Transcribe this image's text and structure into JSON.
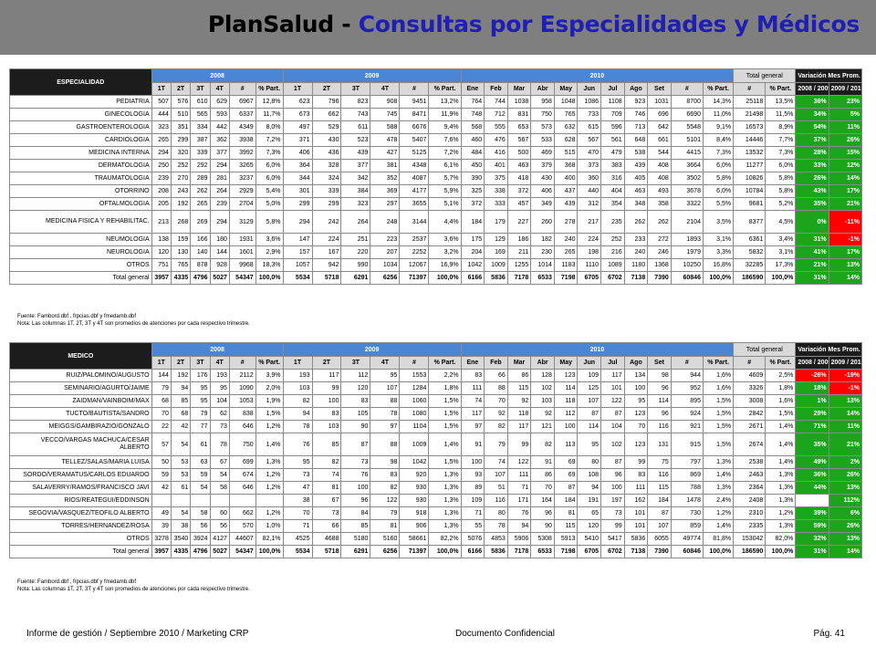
{
  "title": {
    "part1": "PlanSalud - ",
    "part2": "Consultas por Especialidades y Médicos"
  },
  "colors": {
    "header_bar": "#7f7f7f",
    "year_header": "#4a86d4",
    "positive": "#1aa51a",
    "negative": "#ff0000",
    "title_accent": "#1f1fb4"
  },
  "years": [
    "2008",
    "2009",
    "2010"
  ],
  "quarters": [
    "1T",
    "2T",
    "3T",
    "4T"
  ],
  "hash": "#",
  "pct_part": "% Part.",
  "months": [
    "Ene",
    "Feb",
    "Mar",
    "Abr",
    "May",
    "Jun",
    "Jul",
    "Ago",
    "Set"
  ],
  "total_general": "Total general",
  "variacion": "Variación Mes Prom.",
  "var_cols": [
    "2008 / 2009",
    "2009 / 2010"
  ],
  "note1": "Fuente: Fambord.dbf , frpcias.dbf y fmedamb.dbf",
  "note2": "Nota: Las columnas 1T, 2T, 3T y 4T son promedios de atenciones por cada respectivo trimestre.",
  "table1": {
    "label": "ESPECIALIDAD",
    "rows": [
      {
        "name": "PEDIATRIA",
        "v": [
          "507",
          "576",
          "610",
          "629",
          "6967",
          "12,8%",
          "623",
          "796",
          "823",
          "908",
          "9451",
          "13,2%",
          "764",
          "744",
          "1038",
          "958",
          "1048",
          "1086",
          "1108",
          "923",
          "1031",
          "8700",
          "14,3%",
          "25118",
          "13,5%"
        ],
        "var": [
          "36%",
          "23%"
        ]
      },
      {
        "name": "GINECOLOGIA",
        "v": [
          "444",
          "510",
          "565",
          "593",
          "6337",
          "11,7%",
          "673",
          "662",
          "743",
          "745",
          "8471",
          "11,9%",
          "748",
          "712",
          "831",
          "750",
          "765",
          "733",
          "709",
          "746",
          "696",
          "6690",
          "11,0%",
          "21498",
          "11,5%"
        ],
        "var": [
          "34%",
          "5%"
        ]
      },
      {
        "name": "GASTROENTEROLOGIA",
        "v": [
          "323",
          "351",
          "334",
          "442",
          "4349",
          "8,0%",
          "497",
          "529",
          "611",
          "588",
          "6676",
          "9,4%",
          "568",
          "555",
          "653",
          "573",
          "632",
          "615",
          "596",
          "713",
          "642",
          "5548",
          "9,1%",
          "16573",
          "8,9%"
        ],
        "var": [
          "54%",
          "11%"
        ]
      },
      {
        "name": "CARDIOLOGIA",
        "v": [
          "265",
          "299",
          "387",
          "362",
          "3938",
          "7,2%",
          "371",
          "430",
          "523",
          "478",
          "5407",
          "7,6%",
          "460",
          "476",
          "567",
          "533",
          "628",
          "567",
          "561",
          "648",
          "661",
          "5101",
          "8,4%",
          "14446",
          "7,7%"
        ],
        "var": [
          "37%",
          "26%"
        ]
      },
      {
        "name": "MEDICINA INTERNA",
        "v": [
          "294",
          "320",
          "339",
          "377",
          "3992",
          "7,3%",
          "406",
          "436",
          "439",
          "427",
          "5125",
          "7,2%",
          "484",
          "416",
          "500",
          "469",
          "515",
          "470",
          "479",
          "538",
          "544",
          "4415",
          "7,3%",
          "13532",
          "7,3%"
        ],
        "var": [
          "28%",
          "15%"
        ]
      },
      {
        "name": "DERMATOLOGIA",
        "v": [
          "250",
          "252",
          "292",
          "294",
          "3265",
          "6,0%",
          "364",
          "328",
          "377",
          "381",
          "4348",
          "6,1%",
          "450",
          "401",
          "463",
          "379",
          "368",
          "373",
          "383",
          "439",
          "408",
          "3664",
          "6,0%",
          "11277",
          "6,0%"
        ],
        "var": [
          "33%",
          "12%"
        ]
      },
      {
        "name": "TRAUMATOLOGIA",
        "v": [
          "239",
          "270",
          "289",
          "281",
          "3237",
          "6,0%",
          "344",
          "324",
          "342",
          "352",
          "4087",
          "5,7%",
          "390",
          "375",
          "418",
          "430",
          "400",
          "360",
          "316",
          "405",
          "408",
          "3502",
          "5,8%",
          "10826",
          "5,8%"
        ],
        "var": [
          "26%",
          "14%"
        ]
      },
      {
        "name": "OTORRINO",
        "v": [
          "208",
          "243",
          "262",
          "264",
          "2929",
          "5,4%",
          "301",
          "339",
          "384",
          "369",
          "4177",
          "5,9%",
          "325",
          "338",
          "372",
          "406",
          "437",
          "440",
          "404",
          "463",
          "493",
          "3678",
          "6,0%",
          "10784",
          "5,8%"
        ],
        "var": [
          "43%",
          "17%"
        ]
      },
      {
        "name": "OFTALMOLOGIA",
        "v": [
          "205",
          "192",
          "265",
          "239",
          "2704",
          "5,0%",
          "299",
          "299",
          "323",
          "297",
          "3655",
          "5,1%",
          "372",
          "333",
          "457",
          "349",
          "439",
          "312",
          "354",
          "348",
          "358",
          "3322",
          "5,5%",
          "9681",
          "5,2%"
        ],
        "var": [
          "35%",
          "21%"
        ]
      },
      {
        "name": "MEDICINA FISICA Y REHABILITAC.",
        "two": true,
        "v": [
          "213",
          "268",
          "269",
          "294",
          "3129",
          "5,8%",
          "294",
          "242",
          "264",
          "248",
          "3144",
          "4,4%",
          "184",
          "179",
          "227",
          "260",
          "278",
          "217",
          "235",
          "262",
          "262",
          "2104",
          "3,5%",
          "8377",
          "4,5%"
        ],
        "var": [
          "0%",
          "-11%"
        ]
      },
      {
        "name": "NEUMOLOGIA",
        "v": [
          "138",
          "159",
          "166",
          "180",
          "1931",
          "3,6%",
          "147",
          "224",
          "251",
          "223",
          "2537",
          "3,6%",
          "175",
          "129",
          "186",
          "182",
          "240",
          "224",
          "252",
          "233",
          "272",
          "1893",
          "3,1%",
          "6361",
          "3,4%"
        ],
        "var": [
          "31%",
          "-1%"
        ]
      },
      {
        "name": "NEUROLOGIA",
        "v": [
          "120",
          "130",
          "140",
          "144",
          "1601",
          "2,9%",
          "157",
          "167",
          "220",
          "207",
          "2252",
          "3,2%",
          "204",
          "169",
          "211",
          "230",
          "265",
          "198",
          "216",
          "240",
          "246",
          "1979",
          "3,3%",
          "5832",
          "3,1%"
        ],
        "var": [
          "41%",
          "17%"
        ]
      },
      {
        "name": "OTROS",
        "v": [
          "751",
          "765",
          "878",
          "928",
          "9968",
          "18,3%",
          "1057",
          "942",
          "990",
          "1034",
          "12067",
          "16,9%",
          "1042",
          "1009",
          "1255",
          "1014",
          "1183",
          "1110",
          "1089",
          "1180",
          "1368",
          "10250",
          "16,8%",
          "32285",
          "17,3%"
        ],
        "var": [
          "21%",
          "13%"
        ]
      },
      {
        "name": "Total general",
        "total": true,
        "v": [
          "3957",
          "4335",
          "4796",
          "5027",
          "54347",
          "100,0%",
          "5534",
          "5718",
          "6291",
          "6256",
          "71397",
          "100,0%",
          "6166",
          "5836",
          "7178",
          "6533",
          "7198",
          "6705",
          "6702",
          "7138",
          "7390",
          "60846",
          "100,0%",
          "186590",
          "100,0%"
        ],
        "var": [
          "31%",
          "14%"
        ]
      }
    ]
  },
  "table2": {
    "label": "MEDICO",
    "rows": [
      {
        "name": "RUIZ/PALOMINO/AUGUSTO",
        "v": [
          "144",
          "192",
          "176",
          "193",
          "2112",
          "3,9%",
          "193",
          "117",
          "112",
          "95",
          "1553",
          "2,2%",
          "83",
          "66",
          "86",
          "128",
          "123",
          "109",
          "117",
          "134",
          "98",
          "944",
          "1,6%",
          "4609",
          "2,5%"
        ],
        "var": [
          "-26%",
          "-19%"
        ]
      },
      {
        "name": "SEMINARIO/AGURTO/JAIME",
        "v": [
          "79",
          "94",
          "95",
          "95",
          "1090",
          "2,0%",
          "103",
          "99",
          "120",
          "107",
          "1284",
          "1,8%",
          "111",
          "88",
          "115",
          "102",
          "114",
          "125",
          "101",
          "100",
          "96",
          "952",
          "1,6%",
          "3326",
          "1,8%"
        ],
        "var": [
          "18%",
          "-1%"
        ]
      },
      {
        "name": "ZAIDMAN/VAINBOIM/MAX",
        "v": [
          "68",
          "85",
          "95",
          "104",
          "1053",
          "1,9%",
          "82",
          "100",
          "83",
          "88",
          "1060",
          "1,5%",
          "74",
          "70",
          "92",
          "103",
          "118",
          "107",
          "122",
          "95",
          "114",
          "895",
          "1,5%",
          "3008",
          "1,6%"
        ],
        "var": [
          "1%",
          "13%"
        ]
      },
      {
        "name": "TUCTO/BAUTISTA/SANDRO",
        "v": [
          "70",
          "68",
          "79",
          "62",
          "838",
          "1,5%",
          "94",
          "83",
          "105",
          "78",
          "1080",
          "1,5%",
          "117",
          "92",
          "118",
          "92",
          "112",
          "87",
          "87",
          "123",
          "96",
          "924",
          "1,5%",
          "2842",
          "1,5%"
        ],
        "var": [
          "29%",
          "14%"
        ]
      },
      {
        "name": "MEIGGS/GAMBIRAZIO/GONZALO",
        "v": [
          "22",
          "42",
          "77",
          "73",
          "646",
          "1,2%",
          "78",
          "103",
          "90",
          "97",
          "1104",
          "1,5%",
          "97",
          "82",
          "117",
          "121",
          "100",
          "114",
          "104",
          "70",
          "116",
          "921",
          "1,5%",
          "2671",
          "1,4%"
        ],
        "var": [
          "71%",
          "11%"
        ]
      },
      {
        "name": "VECCO/VARGAS MACHUCA/CESAR ALBERTO",
        "two": true,
        "v": [
          "57",
          "54",
          "61",
          "78",
          "750",
          "1,4%",
          "76",
          "85",
          "87",
          "88",
          "1009",
          "1,4%",
          "91",
          "79",
          "99",
          "82",
          "113",
          "95",
          "102",
          "123",
          "131",
          "915",
          "1,5%",
          "2674",
          "1,4%"
        ],
        "var": [
          "35%",
          "21%"
        ]
      },
      {
        "name": "TELLEZ/SALAS/MARIA LUISA",
        "v": [
          "50",
          "53",
          "63",
          "67",
          "699",
          "1,3%",
          "95",
          "82",
          "73",
          "98",
          "1042",
          "1,5%",
          "100",
          "74",
          "122",
          "91",
          "69",
          "80",
          "87",
          "99",
          "75",
          "797",
          "1,3%",
          "2538",
          "1,4%"
        ],
        "var": [
          "49%",
          "2%"
        ]
      },
      {
        "name": "SORDO/VERAMATUS/CARLOS EDUARDO",
        "v": [
          "59",
          "53",
          "59",
          "54",
          "674",
          "1,2%",
          "73",
          "74",
          "76",
          "83",
          "920",
          "1,3%",
          "93",
          "107",
          "111",
          "86",
          "69",
          "108",
          "96",
          "83",
          "116",
          "869",
          "1,4%",
          "2463",
          "1,3%"
        ],
        "var": [
          "36%",
          "26%"
        ]
      },
      {
        "name": "SALAVERRY/RAMOS/FRANCISCO JAVI",
        "v": [
          "42",
          "61",
          "54",
          "58",
          "646",
          "1,2%",
          "47",
          "81",
          "100",
          "82",
          "930",
          "1,3%",
          "89",
          "51",
          "71",
          "70",
          "87",
          "94",
          "100",
          "111",
          "115",
          "788",
          "1,3%",
          "2364",
          "1,3%"
        ],
        "var": [
          "44%",
          "13%"
        ]
      },
      {
        "name": "RIOS/REATEGUI/EDDINSON",
        "v": [
          "",
          "",
          "",
          "",
          "",
          "",
          "38",
          "67",
          "96",
          "122",
          "930",
          "1,3%",
          "109",
          "116",
          "171",
          "164",
          "184",
          "191",
          "197",
          "162",
          "184",
          "1478",
          "2,4%",
          "2408",
          "1,3%"
        ],
        "var": [
          "",
          "112%"
        ]
      },
      {
        "name": "SEGOVIA/VASQUEZ/TEOFILO ALBERTO",
        "v": [
          "49",
          "54",
          "58",
          "60",
          "662",
          "1,2%",
          "70",
          "73",
          "84",
          "79",
          "918",
          "1,3%",
          "71",
          "80",
          "76",
          "96",
          "81",
          "65",
          "73",
          "101",
          "87",
          "730",
          "1,2%",
          "2310",
          "1,2%"
        ],
        "var": [
          "39%",
          "6%"
        ]
      },
      {
        "name": "TORRES/HERNANDEZ/ROSA",
        "v": [
          "39",
          "38",
          "56",
          "56",
          "570",
          "1,0%",
          "71",
          "66",
          "85",
          "81",
          "906",
          "1,3%",
          "55",
          "78",
          "94",
          "90",
          "115",
          "120",
          "99",
          "101",
          "107",
          "859",
          "1,4%",
          "2335",
          "1,3%"
        ],
        "var": [
          "59%",
          "26%"
        ]
      },
      {
        "name": "OTROS",
        "v": [
          "3278",
          "3540",
          "3924",
          "4127",
          "44607",
          "82,1%",
          "4525",
          "4688",
          "5180",
          "5160",
          "58661",
          "82,2%",
          "5076",
          "4853",
          "5906",
          "5308",
          "5913",
          "5410",
          "5417",
          "5836",
          "6055",
          "49774",
          "81,8%",
          "153042",
          "82,0%"
        ],
        "var": [
          "32%",
          "13%"
        ]
      },
      {
        "name": "Total general",
        "total": true,
        "v": [
          "3957",
          "4335",
          "4796",
          "5027",
          "54347",
          "100,0%",
          "5534",
          "5718",
          "6291",
          "6256",
          "71397",
          "100,0%",
          "6166",
          "5836",
          "7178",
          "6533",
          "7198",
          "6705",
          "6702",
          "7138",
          "7390",
          "60846",
          "100,0%",
          "186590",
          "100,0%"
        ],
        "var": [
          "31%",
          "14%"
        ]
      }
    ]
  },
  "footer": {
    "left": "Informe de gestión / Septiembre 2010 / Marketing CRP",
    "center": "Documento Confidencial",
    "right": "Pág. 41"
  }
}
